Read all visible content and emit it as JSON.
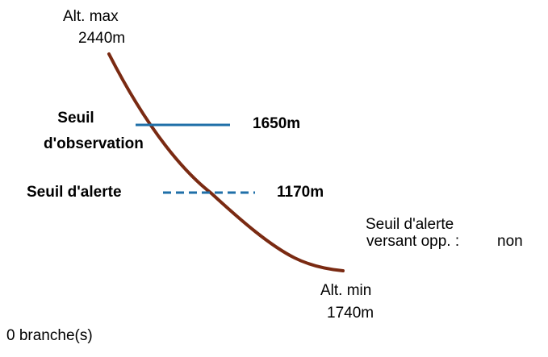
{
  "alt_max": {
    "label": "Alt. max",
    "value": "2440m"
  },
  "alt_min": {
    "label": "Alt. min",
    "value": "1740m"
  },
  "observation_threshold": {
    "label_line1": "Seuil",
    "label_line2": "d'observation",
    "value": "1650m"
  },
  "alert_threshold": {
    "label": "Seuil d'alerte",
    "value": "1170m"
  },
  "opposite_slope": {
    "label_line1": "Seuil d'alerte",
    "label_line2": "versant opp. :",
    "value": "non"
  },
  "branches": "0 branche(s)",
  "colors": {
    "profile": "#7a2a12",
    "threshold": "#1f6fa8",
    "text": "#000000"
  }
}
